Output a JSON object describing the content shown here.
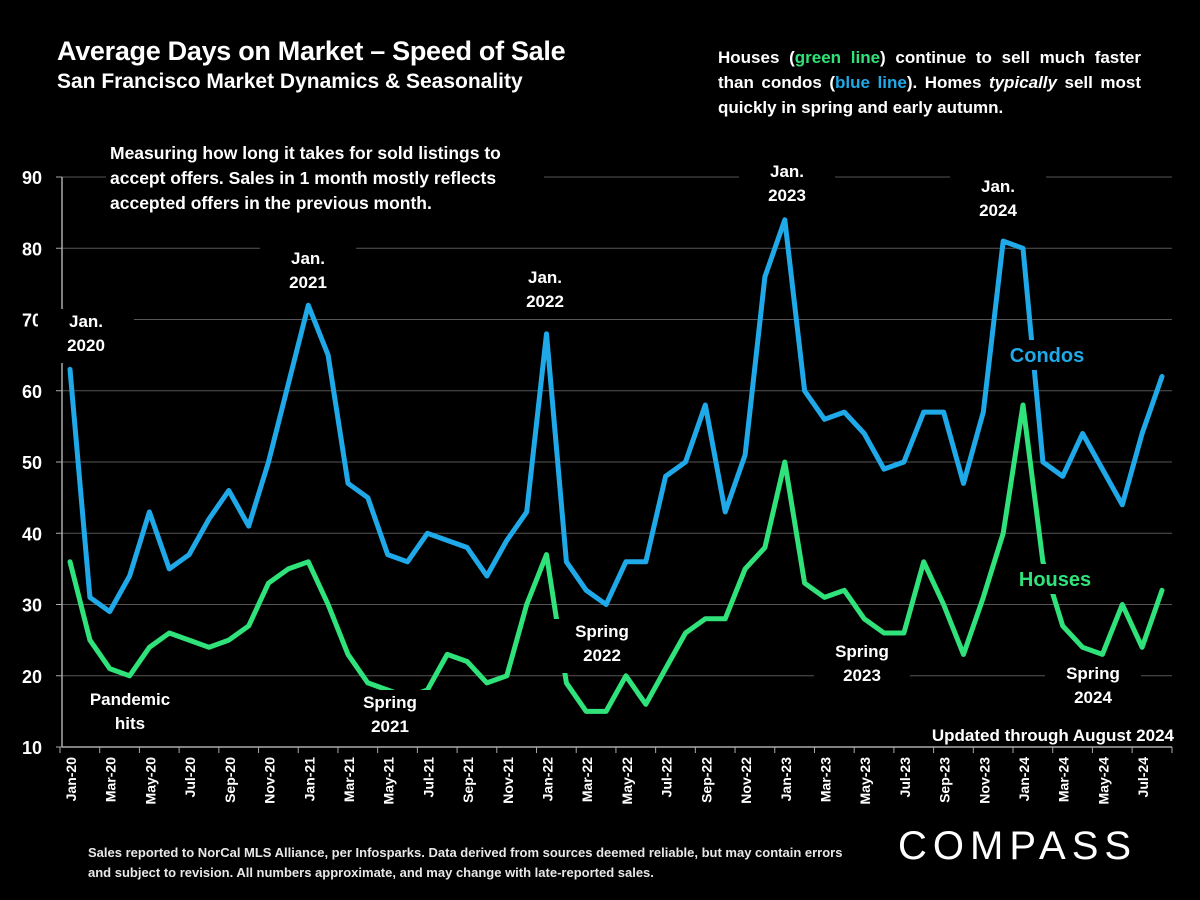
{
  "header": {
    "title": "Average Days on Market – Speed of Sale",
    "subtitle": "San Francisco Market Dynamics & Seasonality"
  },
  "note": {
    "p1": "Houses (",
    "green": "green line",
    "p2": ") continue to sell much faster than condos (",
    "blue": "blue line",
    "p3": "). Homes ",
    "italic": "typically",
    "p4": " sell most quickly in spring and early autumn."
  },
  "measure_note": "Measuring how long it takes for sold listings to accept offers. Sales in 1 month mostly reflects accepted offers in the previous month.",
  "footer": "Sales reported to NorCal MLS Alliance, per Infosparks. Data derived from sources deemed reliable, but may contain errors and subject to revision. All numbers approximate, and may change with late-reported sales.",
  "logo": "COMPASS",
  "colors": {
    "condos": "#1fa9e8",
    "houses": "#2fe27a",
    "background": "#000000",
    "grid": "#555555"
  },
  "chart_data": {
    "type": "line",
    "title": "Average Days on Market – Speed of Sale",
    "ylim": [
      10,
      90
    ],
    "yticks": [
      10,
      20,
      30,
      40,
      50,
      60,
      70,
      80,
      90
    ],
    "grid": true,
    "x": [
      "Jan-20",
      "Feb-20",
      "Mar-20",
      "Apr-20",
      "May-20",
      "Jun-20",
      "Jul-20",
      "Aug-20",
      "Sep-20",
      "Oct-20",
      "Nov-20",
      "Dec-20",
      "Jan-21",
      "Feb-21",
      "Mar-21",
      "Apr-21",
      "May-21",
      "Jun-21",
      "Jul-21",
      "Aug-21",
      "Sep-21",
      "Oct-21",
      "Nov-21",
      "Dec-21",
      "Jan-22",
      "Feb-22",
      "Mar-22",
      "Apr-22",
      "May-22",
      "Jun-22",
      "Jul-22",
      "Aug-22",
      "Sep-22",
      "Oct-22",
      "Nov-22",
      "Dec-22",
      "Jan-23",
      "Feb-23",
      "Mar-23",
      "Apr-23",
      "May-23",
      "Jun-23",
      "Jul-23",
      "Aug-23",
      "Sep-23",
      "Oct-23",
      "Nov-23",
      "Dec-23",
      "Jan-24",
      "Feb-24",
      "Mar-24",
      "Apr-24",
      "May-24",
      "Jun-24",
      "Jul-24",
      "Aug-24"
    ],
    "xtick_labels": [
      "Jan-20",
      "Mar-20",
      "May-20",
      "Jul-20",
      "Sep-20",
      "Nov-20",
      "Jan-21",
      "Mar-21",
      "May-21",
      "Jul-21",
      "Sep-21",
      "Nov-21",
      "Jan-22",
      "Mar-22",
      "May-22",
      "Jul-22",
      "Sep-22",
      "Nov-22",
      "Jan-23",
      "Mar-23",
      "May-23",
      "Jul-23",
      "Sep-23",
      "Nov-23",
      "Jan-24",
      "Mar-24",
      "May-24",
      "Jul-24"
    ],
    "series": [
      {
        "name": "Condos",
        "color": "#1fa9e8",
        "values": [
          63,
          31,
          29,
          34,
          43,
          35,
          37,
          42,
          46,
          41,
          50,
          61,
          72,
          65,
          47,
          45,
          37,
          36,
          40,
          39,
          38,
          34,
          39,
          43,
          68,
          36,
          32,
          30,
          36,
          36,
          48,
          50,
          58,
          43,
          51,
          76,
          84,
          60,
          56,
          57,
          54,
          49,
          50,
          57,
          57,
          47,
          57,
          81,
          80,
          50,
          48,
          54,
          49,
          44,
          54,
          62
        ]
      },
      {
        "name": "Houses",
        "color": "#2fe27a",
        "values": [
          36,
          25,
          21,
          20,
          24,
          26,
          25,
          24,
          25,
          27,
          33,
          35,
          36,
          30,
          23,
          19,
          18,
          17,
          18,
          23,
          22,
          19,
          20,
          30,
          37,
          19,
          15,
          15,
          20,
          16,
          21,
          26,
          28,
          28,
          35,
          38,
          50,
          33,
          31,
          32,
          28,
          26,
          26,
          36,
          30,
          23,
          31,
          40,
          58,
          36,
          27,
          24,
          23,
          30,
          24,
          32
        ]
      }
    ],
    "annotations": [
      "Jan.\n2020",
      "Pandemic\nhits",
      "Jan.\n2021",
      "Spring\n2021",
      "Jan.\n2022",
      "Spring\n2022",
      "Jan.\n2023",
      "Spring\n2023",
      "Jan.\n2024",
      "Spring\n2024",
      "Updated through August 2024"
    ]
  }
}
